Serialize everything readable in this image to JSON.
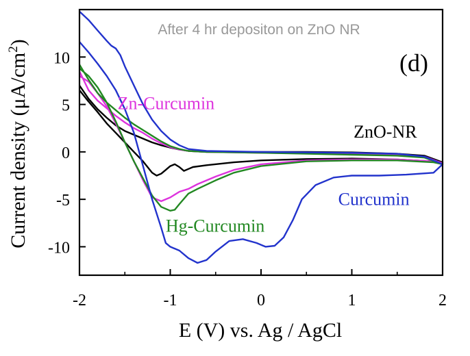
{
  "chart_data": {
    "type": "line",
    "title": "After 4 hr depositon on ZnO NR",
    "panel_label": "(d)",
    "xlabel": "E (V) vs. Ag / AgCl",
    "ylabel": "Current density (μA/cm²)",
    "ylabel_parts": {
      "main": "Current density (μA/cm",
      "sup": "2",
      "end": ")"
    },
    "xlim": [
      -2,
      2
    ],
    "ylim": [
      -13,
      15
    ],
    "xticks": [
      -2,
      -1,
      0,
      1,
      2
    ],
    "xtick_labels": [
      "-2",
      "-1",
      "0",
      "1",
      "2"
    ],
    "yticks": [
      -10,
      -5,
      0,
      5,
      10
    ],
    "ytick_labels": [
      "-10",
      "-5",
      "0",
      "5",
      "10"
    ],
    "grid": false,
    "series": [
      {
        "name": "ZnO-NR",
        "color": "#000000",
        "points": [
          [
            -2,
            7.0
          ],
          [
            -1.9,
            5.6
          ],
          [
            -1.8,
            4.5
          ],
          [
            -1.7,
            3.6
          ],
          [
            -1.6,
            2.8
          ],
          [
            -1.5,
            2.2
          ],
          [
            -1.4,
            1.8
          ],
          [
            -1.3,
            1.4
          ],
          [
            -1.2,
            1.0
          ],
          [
            -1.1,
            0.7
          ],
          [
            -1.0,
            0.45
          ],
          [
            -0.9,
            0.25
          ],
          [
            -0.8,
            0.1
          ],
          [
            -0.6,
            0.0
          ],
          [
            -0.3,
            0.0
          ],
          [
            0,
            0.0
          ],
          [
            0.5,
            0.0
          ],
          [
            1.0,
            -0.05
          ],
          [
            1.5,
            -0.2
          ],
          [
            1.8,
            -0.4
          ],
          [
            2,
            -1.1
          ],
          [
            1.9,
            -1.0
          ],
          [
            1.5,
            -0.8
          ],
          [
            1.0,
            -0.7
          ],
          [
            0.5,
            -0.75
          ],
          [
            0,
            -0.9
          ],
          [
            -0.3,
            -1.1
          ],
          [
            -0.6,
            -1.4
          ],
          [
            -0.75,
            -1.6
          ],
          [
            -0.8,
            -1.8
          ],
          [
            -0.85,
            -2.0
          ],
          [
            -0.9,
            -1.6
          ],
          [
            -0.95,
            -1.3
          ],
          [
            -1.0,
            -1.5
          ],
          [
            -1.05,
            -1.9
          ],
          [
            -1.1,
            -2.3
          ],
          [
            -1.15,
            -2.5
          ],
          [
            -1.2,
            -2.2
          ],
          [
            -1.3,
            -1.0
          ],
          [
            -1.4,
            0.0
          ],
          [
            -1.5,
            1.0
          ],
          [
            -1.6,
            2.0
          ],
          [
            -1.7,
            3.0
          ],
          [
            -1.8,
            4.2
          ],
          [
            -1.9,
            5.3
          ],
          [
            -2,
            6.5
          ]
        ]
      },
      {
        "name": "Zn-Curcumin",
        "color": "#dd33dd",
        "points": [
          [
            -2,
            8.5
          ],
          [
            -1.9,
            6.5
          ],
          [
            -1.8,
            5.4
          ],
          [
            -1.7,
            4.6
          ],
          [
            -1.6,
            3.8
          ],
          [
            -1.5,
            3.1
          ],
          [
            -1.4,
            2.5
          ],
          [
            -1.3,
            2.0
          ],
          [
            -1.2,
            1.4
          ],
          [
            -1.1,
            0.9
          ],
          [
            -1.0,
            0.5
          ],
          [
            -0.9,
            0.25
          ],
          [
            -0.8,
            0.1
          ],
          [
            -0.6,
            0.0
          ],
          [
            -0.3,
            -0.05
          ],
          [
            0,
            -0.1
          ],
          [
            0.5,
            -0.15
          ],
          [
            1.0,
            -0.2
          ],
          [
            1.5,
            -0.3
          ],
          [
            1.8,
            -0.5
          ],
          [
            2,
            -1.2
          ],
          [
            1.9,
            -1.0
          ],
          [
            1.5,
            -0.8
          ],
          [
            1.0,
            -0.8
          ],
          [
            0.5,
            -0.9
          ],
          [
            0,
            -1.3
          ],
          [
            -0.3,
            -1.9
          ],
          [
            -0.5,
            -2.6
          ],
          [
            -0.7,
            -3.4
          ],
          [
            -0.8,
            -3.9
          ],
          [
            -0.9,
            -4.2
          ],
          [
            -1.0,
            -4.8
          ],
          [
            -1.1,
            -5.2
          ],
          [
            -1.2,
            -4.8
          ],
          [
            -1.3,
            -3.0
          ],
          [
            -1.4,
            -1.0
          ],
          [
            -1.5,
            1.0
          ],
          [
            -1.6,
            3.0
          ],
          [
            -1.7,
            4.8
          ],
          [
            -1.8,
            6.2
          ],
          [
            -1.9,
            7.4
          ],
          [
            -2,
            8.0
          ]
        ]
      },
      {
        "name": "Hg-Curcumin",
        "color": "#228822",
        "points": [
          [
            -2,
            9.2
          ],
          [
            -1.9,
            7.6
          ],
          [
            -1.8,
            6.2
          ],
          [
            -1.7,
            5.2
          ],
          [
            -1.6,
            4.4
          ],
          [
            -1.5,
            3.6
          ],
          [
            -1.4,
            2.9
          ],
          [
            -1.3,
            2.3
          ],
          [
            -1.2,
            1.7
          ],
          [
            -1.1,
            1.1
          ],
          [
            -1.0,
            0.6
          ],
          [
            -0.9,
            0.3
          ],
          [
            -0.8,
            0.1
          ],
          [
            -0.6,
            0.0
          ],
          [
            -0.3,
            -0.05
          ],
          [
            0,
            -0.1
          ],
          [
            0.5,
            -0.2
          ],
          [
            1.0,
            -0.3
          ],
          [
            1.5,
            -0.4
          ],
          [
            1.8,
            -0.6
          ],
          [
            2,
            -1.3
          ],
          [
            1.9,
            -1.1
          ],
          [
            1.5,
            -0.9
          ],
          [
            1.0,
            -0.9
          ],
          [
            0.5,
            -1.0
          ],
          [
            0,
            -1.5
          ],
          [
            -0.3,
            -2.2
          ],
          [
            -0.5,
            -3.0
          ],
          [
            -0.7,
            -3.9
          ],
          [
            -0.8,
            -4.4
          ],
          [
            -0.9,
            -5.5
          ],
          [
            -0.95,
            -6.1
          ],
          [
            -1.0,
            -6.2
          ],
          [
            -1.1,
            -5.8
          ],
          [
            -1.2,
            -4.6
          ],
          [
            -1.3,
            -2.8
          ],
          [
            -1.4,
            -1.0
          ],
          [
            -1.5,
            1.0
          ],
          [
            -1.6,
            3.2
          ],
          [
            -1.7,
            5.2
          ],
          [
            -1.8,
            6.8
          ],
          [
            -1.9,
            8.0
          ],
          [
            -2,
            8.8
          ]
        ]
      },
      {
        "name": "Curcumin",
        "color": "#2233cc",
        "points": [
          [
            -2,
            14.8
          ],
          [
            -1.9,
            13.9
          ],
          [
            -1.8,
            12.8
          ],
          [
            -1.7,
            11.7
          ],
          [
            -1.65,
            11.2
          ],
          [
            -1.6,
            10.9
          ],
          [
            -1.55,
            10.2
          ],
          [
            -1.5,
            9.0
          ],
          [
            -1.4,
            7.0
          ],
          [
            -1.3,
            5.0
          ],
          [
            -1.2,
            3.4
          ],
          [
            -1.1,
            2.2
          ],
          [
            -1.0,
            1.3
          ],
          [
            -0.9,
            0.7
          ],
          [
            -0.8,
            0.3
          ],
          [
            -0.6,
            0.1
          ],
          [
            0,
            0.0
          ],
          [
            0.5,
            -0.05
          ],
          [
            1.0,
            -0.1
          ],
          [
            1.5,
            -0.2
          ],
          [
            1.8,
            -0.5
          ],
          [
            2,
            -1.3
          ],
          [
            1.9,
            -2.2
          ],
          [
            1.6,
            -2.4
          ],
          [
            1.3,
            -2.5
          ],
          [
            1.0,
            -2.5
          ],
          [
            0.8,
            -2.7
          ],
          [
            0.6,
            -3.5
          ],
          [
            0.45,
            -5.0
          ],
          [
            0.35,
            -7.2
          ],
          [
            0.25,
            -9.0
          ],
          [
            0.15,
            -9.9
          ],
          [
            0.05,
            -10.0
          ],
          [
            -0.05,
            -9.6
          ],
          [
            -0.2,
            -9.2
          ],
          [
            -0.35,
            -9.4
          ],
          [
            -0.5,
            -10.5
          ],
          [
            -0.6,
            -11.4
          ],
          [
            -0.7,
            -11.7
          ],
          [
            -0.8,
            -11.2
          ],
          [
            -0.9,
            -10.4
          ],
          [
            -1.0,
            -10.0
          ],
          [
            -1.05,
            -9.6
          ],
          [
            -1.1,
            -8.0
          ],
          [
            -1.2,
            -5.0
          ],
          [
            -1.3,
            -1.5
          ],
          [
            -1.4,
            2.0
          ],
          [
            -1.5,
            4.5
          ],
          [
            -1.6,
            6.5
          ],
          [
            -1.7,
            8.0
          ],
          [
            -1.8,
            9.3
          ],
          [
            -1.9,
            10.5
          ],
          [
            -2,
            11.6
          ]
        ]
      }
    ],
    "annotations": [
      {
        "text": "Zn-Curcumin",
        "color": "#dd33dd",
        "x": -1.58,
        "y": 4.5
      },
      {
        "text": "ZnO-NR",
        "color": "#000000",
        "x": 1.02,
        "y": 1.5
      },
      {
        "text": "Curcumin",
        "color": "#2233cc",
        "x": 0.85,
        "y": -5.6
      },
      {
        "text": "Hg-Curcumin",
        "color": "#228822",
        "x": -1.05,
        "y": -8.4
      }
    ]
  }
}
